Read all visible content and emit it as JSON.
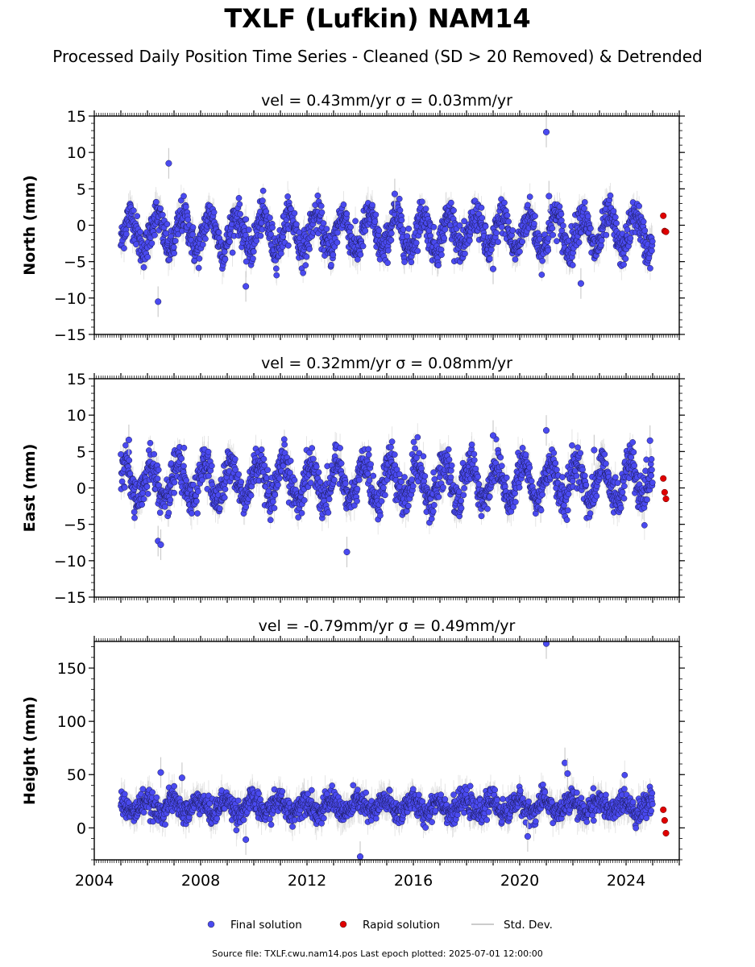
{
  "title": "TXLF (Lufkin) NAM14",
  "subtitle": "Processed Daily Position Time Series - Cleaned (SD > 20 Removed) & Detrended",
  "source_note": "Source file: TXLF.cwu.nam14.pos  Last epoch plotted: 2025-07-01 12:00:00",
  "legend": [
    {
      "label": "Final solution",
      "color": "#4a4af0",
      "symbol": "dot"
    },
    {
      "label": "Rapid solution",
      "color": "#e00000",
      "symbol": "dot"
    },
    {
      "label": "Std. Dev.",
      "color": "#cccccc",
      "symbol": "line"
    }
  ],
  "chart_data": [
    {
      "type": "scatter",
      "panel": "north",
      "title": "vel = 0.43mm/yr   σ = 0.03mm/yr",
      "ylabel": "North (mm)",
      "xlim": [
        2004,
        2026
      ],
      "ylim": [
        -15,
        15
      ],
      "yticks": [
        -15,
        -10,
        -5,
        0,
        5,
        10,
        15
      ],
      "ytick_labels": [
        "−15",
        "−10",
        "−5",
        "0",
        "5",
        "10",
        "15"
      ],
      "series": [
        {
          "name": "Final solution",
          "x_range": [
            2005.0,
            2025.0
          ],
          "amplitude": 2.4,
          "noise": 1.2,
          "baseline": -1.0,
          "outliers": [
            [
              2006.4,
              -10.5
            ],
            [
              2006.8,
              8.5
            ],
            [
              2009.7,
              -8.4
            ],
            [
              2015.3,
              4.3
            ],
            [
              2019.0,
              -6.0
            ],
            [
              2021.0,
              12.8
            ],
            [
              2021.1,
              4.0
            ],
            [
              2022.3,
              -8.0
            ]
          ]
        },
        {
          "name": "Rapid solution",
          "points": [
            [
              2025.4,
              1.3
            ],
            [
              2025.45,
              -0.8
            ],
            [
              2025.5,
              -0.9
            ]
          ]
        }
      ]
    },
    {
      "type": "scatter",
      "panel": "east",
      "title": "vel = 0.32mm/yr   σ = 0.08mm/yr",
      "ylabel": "East (mm)",
      "xlim": [
        2004,
        2026
      ],
      "ylim": [
        -15,
        15
      ],
      "yticks": [
        -15,
        -10,
        -5,
        0,
        5,
        10,
        15
      ],
      "ytick_labels": [
        "−15",
        "−10",
        "−5",
        "0",
        "5",
        "10",
        "15"
      ],
      "series": [
        {
          "name": "Final solution",
          "x_range": [
            2005.0,
            2025.0
          ],
          "amplitude": 2.6,
          "noise": 1.3,
          "baseline": 0.8,
          "outliers": [
            [
              2005.3,
              6.6
            ],
            [
              2006.4,
              -7.3
            ],
            [
              2006.5,
              -7.8
            ],
            [
              2013.5,
              -8.8
            ],
            [
              2019.0,
              7.2
            ],
            [
              2021.0,
              7.9
            ],
            [
              2022.8,
              5.2
            ],
            [
              2024.9,
              6.5
            ]
          ]
        },
        {
          "name": "Rapid solution",
          "points": [
            [
              2025.4,
              1.3
            ],
            [
              2025.45,
              -0.6
            ],
            [
              2025.5,
              -1.5
            ]
          ]
        }
      ]
    },
    {
      "type": "scatter",
      "panel": "height",
      "title": "vel = -0.79mm/yr   σ = 0.49mm/yr",
      "ylabel": "Height (mm)",
      "xlim": [
        2004,
        2026
      ],
      "ylim": [
        -30,
        175
      ],
      "yticks": [
        0,
        50,
        100,
        150
      ],
      "ytick_labels": [
        "0",
        "50",
        "100",
        "150"
      ],
      "xticks": [
        2004,
        2008,
        2012,
        2016,
        2020,
        2024
      ],
      "xtick_labels": [
        "2004",
        "2008",
        "2012",
        "2016",
        "2020",
        "2024"
      ],
      "series": [
        {
          "name": "Final solution",
          "x_range": [
            2005.0,
            2025.0
          ],
          "amplitude": 6.0,
          "noise": 5.5,
          "baseline": 20.0,
          "outliers": [
            [
              2006.5,
              52
            ],
            [
              2007.3,
              47
            ],
            [
              2009.7,
              -11
            ],
            [
              2014.0,
              -27
            ],
            [
              2020.3,
              -8
            ],
            [
              2021.0,
              173
            ],
            [
              2021.7,
              61
            ],
            [
              2021.8,
              51
            ]
          ]
        },
        {
          "name": "Rapid solution",
          "points": [
            [
              2025.4,
              17
            ],
            [
              2025.45,
              7
            ],
            [
              2025.5,
              -5
            ]
          ]
        }
      ]
    }
  ]
}
